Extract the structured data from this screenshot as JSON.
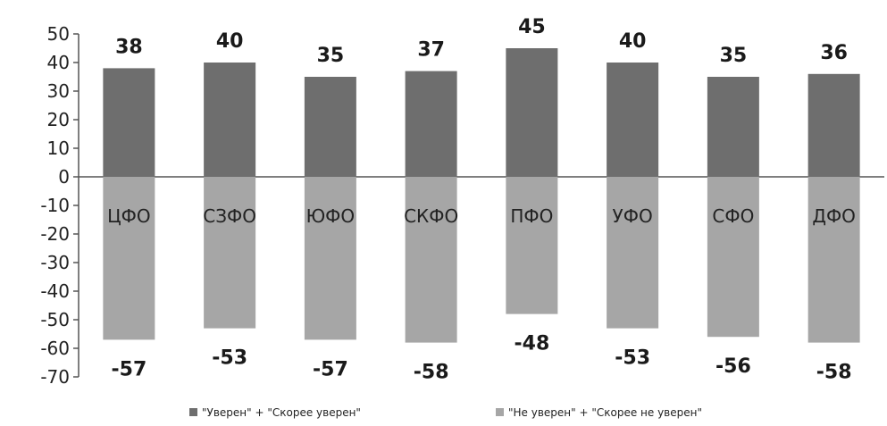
{
  "chart_data": {
    "type": "bar",
    "categories": [
      "ЦФО",
      "СЗФО",
      "ЮФО",
      "СКФО",
      "ПФО",
      "УФО",
      "СФО",
      "ДФО"
    ],
    "series": [
      {
        "name": "\"Уверен\" + \"Скорее уверен\"",
        "values": [
          38,
          40,
          35,
          37,
          45,
          40,
          35,
          36
        ],
        "color": "#6e6e6e"
      },
      {
        "name": "\"Не уверен\" + \"Скорее не уверен\"",
        "values": [
          -57,
          -53,
          -57,
          -58,
          -48,
          -53,
          -56,
          -58
        ],
        "color": "#a6a6a6"
      }
    ],
    "ylim": [
      -70,
      50
    ],
    "yticks": [
      50,
      40,
      30,
      20,
      10,
      0,
      -10,
      -20,
      -30,
      -40,
      -50,
      -60,
      -70
    ],
    "legend_position": "bottom",
    "grid": false
  }
}
